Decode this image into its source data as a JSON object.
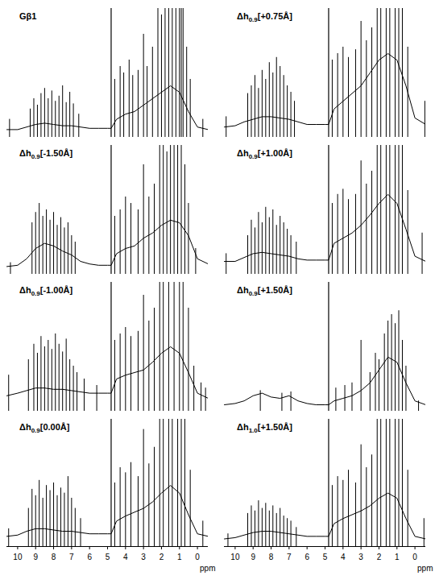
{
  "chart_data": [
    {
      "type": "line",
      "title": "Gβ1",
      "color": "#000000",
      "xlim": [
        10.6,
        -0.6
      ],
      "ylim": [
        0,
        100
      ],
      "axis_break": 4.8,
      "tick_labels": false,
      "envelope": {
        "x": [
          10.6,
          10,
          9.5,
          9,
          8.5,
          8,
          7.5,
          7,
          6.5,
          6,
          5.5,
          5,
          4.8,
          4.5,
          4,
          3.5,
          3,
          2.5,
          2,
          1.5,
          1,
          0.5,
          0,
          -0.6
        ],
        "values": [
          6,
          6,
          8,
          10,
          11,
          10,
          9,
          9,
          8,
          7,
          7,
          7,
          7,
          14,
          18,
          20,
          25,
          30,
          35,
          40,
          35,
          20,
          8,
          6
        ]
      },
      "peaks": {
        "x": [
          10.45,
          9.3,
          9.1,
          8.9,
          8.7,
          8.5,
          8.3,
          8.1,
          7.9,
          7.7,
          7.5,
          7.3,
          7.1,
          6.9,
          6.6,
          4.6,
          4.3,
          4.1,
          3.8,
          3.6,
          3.3,
          3.0,
          2.8,
          2.5,
          2.2,
          2.0,
          1.8,
          1.6,
          1.4,
          1.2,
          1.0,
          0.9,
          0.8,
          0.6,
          0.4,
          -0.3
        ],
        "values": [
          14,
          22,
          30,
          25,
          34,
          38,
          30,
          36,
          28,
          32,
          40,
          27,
          35,
          26,
          18,
          45,
          55,
          50,
          60,
          48,
          52,
          80,
          55,
          70,
          110,
          95,
          120,
          100,
          130,
          115,
          140,
          125,
          110,
          70,
          45,
          14
        ]
      }
    },
    {
      "type": "line",
      "title": "Δh0.9[+0.75Å]",
      "color": "#000000",
      "xlim": [
        10.6,
        -0.6
      ],
      "ylim": [
        0,
        100
      ],
      "axis_break": 4.8,
      "tick_labels": false,
      "envelope": {
        "x": [
          10.6,
          10,
          9.5,
          9,
          8.5,
          8,
          7.5,
          7,
          6.5,
          6,
          5.5,
          5,
          4.8,
          4.5,
          4,
          3.5,
          3,
          2.5,
          2,
          1.5,
          1,
          0.5,
          0,
          -0.6
        ],
        "values": [
          8,
          9,
          12,
          14,
          16,
          16,
          15,
          14,
          12,
          10,
          10,
          10,
          10,
          22,
          28,
          34,
          40,
          50,
          60,
          65,
          60,
          40,
          15,
          10
        ]
      },
      "peaks": {
        "x": [
          10.5,
          9.3,
          9.1,
          8.9,
          8.7,
          8.5,
          8.3,
          8.1,
          7.9,
          7.7,
          7.5,
          7.3,
          7.1,
          6.9,
          6.7,
          4.6,
          4.3,
          4.0,
          3.7,
          3.3,
          3.0,
          2.7,
          2.4,
          2.1,
          1.9,
          1.6,
          1.4,
          1.1,
          0.9,
          0.7,
          0.4,
          -0.55
        ],
        "values": [
          16,
          34,
          40,
          48,
          38,
          52,
          45,
          58,
          50,
          62,
          55,
          48,
          40,
          35,
          28,
          60,
          65,
          70,
          62,
          68,
          90,
          75,
          85,
          120,
          130,
          125,
          140,
          135,
          140,
          120,
          70,
          28
        ]
      }
    },
    {
      "type": "line",
      "title": "Δh0.9[-1.50Å]",
      "color": "#000000",
      "xlim": [
        10.6,
        -0.6
      ],
      "ylim": [
        0,
        100
      ],
      "axis_break": 4.8,
      "tick_labels": false,
      "envelope": {
        "x": [
          10.6,
          10,
          9.5,
          9,
          8.5,
          8,
          7.5,
          7,
          6.5,
          6,
          5.5,
          5,
          4.8,
          4.5,
          4,
          3.5,
          3,
          2.5,
          2,
          1.5,
          1,
          0.5,
          0,
          -0.6
        ],
        "values": [
          6,
          7,
          12,
          20,
          24,
          22,
          18,
          15,
          10,
          8,
          7,
          7,
          7,
          16,
          20,
          22,
          28,
          32,
          38,
          42,
          40,
          30,
          12,
          8
        ]
      },
      "peaks": {
        "x": [
          10.4,
          9.2,
          9.0,
          8.8,
          8.6,
          8.4,
          8.2,
          8.0,
          7.8,
          7.6,
          7.4,
          7.2,
          7.0,
          6.8,
          4.6,
          4.3,
          4.0,
          3.7,
          3.3,
          3.0,
          2.7,
          2.4,
          2.1,
          1.9,
          1.7,
          1.5,
          1.3,
          1.1,
          0.9,
          0.7,
          0.5,
          0.1
        ],
        "values": [
          9,
          40,
          48,
          55,
          45,
          50,
          42,
          48,
          38,
          44,
          36,
          40,
          30,
          25,
          45,
          50,
          60,
          55,
          50,
          85,
          60,
          70,
          100,
          115,
          95,
          125,
          110,
          130,
          120,
          85,
          55,
          20
        ]
      }
    },
    {
      "type": "line",
      "title": "Δh0.9[+1.00Å]",
      "color": "#000000",
      "xlim": [
        10.6,
        -0.6
      ],
      "ylim": [
        0,
        100
      ],
      "axis_break": 4.8,
      "tick_labels": false,
      "envelope": {
        "x": [
          10.6,
          10,
          9.5,
          9,
          8.5,
          8,
          7.5,
          7,
          6.5,
          6,
          5.5,
          5,
          4.8,
          4.5,
          4,
          3.5,
          3,
          2.5,
          2,
          1.5,
          1,
          0.5,
          0,
          -0.6
        ],
        "values": [
          10,
          10,
          13,
          16,
          17,
          16,
          15,
          14,
          12,
          11,
          11,
          11,
          11,
          24,
          28,
          32,
          38,
          46,
          55,
          62,
          55,
          35,
          14,
          10
        ]
      },
      "peaks": {
        "x": [
          10.5,
          9.3,
          9.1,
          8.9,
          8.7,
          8.5,
          8.3,
          8.1,
          7.9,
          7.7,
          7.5,
          7.3,
          7.1,
          6.9,
          6.6,
          4.6,
          4.3,
          4.0,
          3.7,
          3.3,
          3.0,
          2.7,
          2.4,
          2.1,
          1.9,
          1.6,
          1.4,
          1.1,
          0.9,
          0.7,
          0.4,
          -0.4
        ],
        "values": [
          16,
          30,
          42,
          36,
          48,
          40,
          52,
          44,
          50,
          38,
          45,
          40,
          35,
          30,
          25,
          55,
          62,
          66,
          58,
          62,
          88,
          70,
          80,
          118,
          125,
          120,
          135,
          130,
          140,
          115,
          65,
          32
        ]
      }
    },
    {
      "type": "line",
      "title": "Δh0.9[-1.00Å]",
      "color": "#000000",
      "xlim": [
        10.6,
        -0.6
      ],
      "ylim": [
        0,
        100
      ],
      "axis_break": 4.8,
      "tick_labels": false,
      "envelope": {
        "x": [
          10.6,
          10,
          9.5,
          9,
          8.5,
          8,
          7.5,
          7,
          6.5,
          6,
          5.5,
          5,
          4.8,
          4.5,
          4,
          3.5,
          3,
          2.5,
          2,
          1.5,
          1,
          0.5,
          0,
          -0.6
        ],
        "values": [
          12,
          14,
          16,
          18,
          18,
          17,
          17,
          16,
          15,
          14,
          14,
          14,
          14,
          25,
          28,
          30,
          32,
          38,
          45,
          50,
          45,
          30,
          14,
          10
        ]
      },
      "peaks": {
        "x": [
          10.5,
          9.4,
          9.1,
          8.9,
          8.7,
          8.5,
          8.3,
          8.1,
          7.9,
          7.7,
          7.5,
          7.3,
          7.1,
          6.9,
          6.7,
          6.3,
          5.6,
          4.6,
          4.3,
          4.0,
          3.7,
          3.3,
          3.0,
          2.7,
          2.4,
          2.1,
          1.9,
          1.6,
          1.3,
          1.0,
          0.8,
          0.5,
          0.2,
          -0.2,
          -0.45
        ],
        "values": [
          28,
          40,
          52,
          45,
          58,
          50,
          55,
          48,
          60,
          52,
          46,
          56,
          40,
          35,
          30,
          25,
          20,
          55,
          60,
          65,
          58,
          62,
          90,
          70,
          80,
          110,
          125,
          115,
          130,
          140,
          120,
          80,
          35,
          22,
          18
        ]
      }
    },
    {
      "type": "line",
      "title": "Δh0.9[+1.50Å]",
      "color": "#000000",
      "xlim": [
        10.6,
        -0.6
      ],
      "ylim": [
        0,
        100
      ],
      "axis_break": 4.8,
      "tick_labels": false,
      "envelope": {
        "x": [
          10.6,
          10,
          9.5,
          9,
          8.5,
          8,
          7.5,
          7,
          6.5,
          6,
          5.5,
          5,
          4.8,
          4.5,
          4,
          3.5,
          3,
          2.5,
          2,
          1.5,
          1,
          0.5,
          0,
          -0.6
        ],
        "values": [
          5,
          6,
          8,
          12,
          14,
          11,
          10,
          12,
          8,
          6,
          5,
          5,
          5,
          8,
          10,
          12,
          16,
          22,
          32,
          42,
          38,
          22,
          8,
          5
        ]
      },
      "peaks": {
        "x": [
          8.6,
          7.4,
          6.9,
          4.4,
          3.9,
          3.5,
          3.0,
          2.5,
          2.2,
          2.0,
          1.7,
          1.5,
          1.3,
          1.1,
          0.9,
          0.7,
          0.5,
          -0.2
        ],
        "values": [
          16,
          14,
          15,
          18,
          20,
          22,
          55,
          30,
          45,
          40,
          60,
          70,
          75,
          68,
          78,
          55,
          35,
          8
        ]
      }
    },
    {
      "type": "line",
      "title": "Δh0.9[0.00Å]",
      "color": "#000000",
      "xlim": [
        10.6,
        -0.6
      ],
      "ylim": [
        0,
        100
      ],
      "axis_break": 4.8,
      "tick_labels": "x",
      "xticks": [
        10,
        9,
        8,
        7,
        6,
        5,
        4,
        3,
        2,
        1,
        0
      ],
      "xlabel": "ppm",
      "envelope": {
        "x": [
          10.6,
          10,
          9.5,
          9,
          8.5,
          8,
          7.5,
          7,
          6.5,
          6,
          5.5,
          5,
          4.8,
          4.5,
          4,
          3.5,
          3,
          2.5,
          2,
          1.5,
          1,
          0.5,
          0,
          -0.6
        ],
        "values": [
          8,
          9,
          12,
          14,
          14,
          13,
          12,
          12,
          11,
          10,
          10,
          10,
          10,
          20,
          24,
          27,
          30,
          35,
          42,
          48,
          42,
          25,
          10,
          8
        ]
      },
      "peaks": {
        "x": [
          10.5,
          9.4,
          9.2,
          9.0,
          8.8,
          8.6,
          8.4,
          8.2,
          8.0,
          7.8,
          7.6,
          7.4,
          7.2,
          7.0,
          6.8,
          6.5,
          4.6,
          4.3,
          4.0,
          3.7,
          3.3,
          3.0,
          2.7,
          2.4,
          2.1,
          1.9,
          1.6,
          1.4,
          1.1,
          0.9,
          0.7,
          0.4,
          -0.3
        ],
        "values": [
          14,
          30,
          45,
          40,
          52,
          38,
          48,
          44,
          50,
          40,
          46,
          42,
          55,
          38,
          30,
          22,
          50,
          62,
          58,
          66,
          55,
          92,
          65,
          78,
          115,
          120,
          110,
          130,
          125,
          140,
          110,
          60,
          20
        ]
      }
    },
    {
      "type": "line",
      "title": "Δh1.0[+1.50Å]",
      "color": "#000000",
      "xlim": [
        10.6,
        -0.6
      ],
      "ylim": [
        0,
        100
      ],
      "axis_break": 4.8,
      "tick_labels": "x",
      "xticks": [
        10,
        9,
        8,
        7,
        6,
        5,
        4,
        3,
        2,
        1,
        0
      ],
      "xlabel": "ppm",
      "envelope": {
        "x": [
          10.6,
          10,
          9.5,
          9,
          8.5,
          8,
          7.5,
          7,
          6.5,
          6,
          5.5,
          5,
          4.8,
          4.5,
          4,
          3.5,
          3,
          2.5,
          2,
          1.5,
          1,
          0.5,
          0,
          -0.6
        ],
        "values": [
          6,
          7,
          9,
          11,
          12,
          12,
          11,
          10,
          9,
          8,
          8,
          8,
          8,
          18,
          22,
          25,
          28,
          32,
          38,
          42,
          38,
          22,
          8,
          6
        ]
      },
      "peaks": {
        "x": [
          10.4,
          9.3,
          9.1,
          8.9,
          8.7,
          8.5,
          8.3,
          8.1,
          7.9,
          7.7,
          7.5,
          7.3,
          7.1,
          6.9,
          6.6,
          4.6,
          4.3,
          4.0,
          3.7,
          3.3,
          3.0,
          2.7,
          2.4,
          2.1,
          1.9,
          1.6,
          1.4,
          1.1,
          0.9,
          0.7,
          0.4,
          -0.5
        ],
        "values": [
          10,
          26,
          32,
          28,
          36,
          30,
          34,
          28,
          32,
          26,
          30,
          24,
          22,
          20,
          15,
          48,
          55,
          52,
          60,
          50,
          80,
          62,
          72,
          110,
          120,
          115,
          130,
          125,
          135,
          110,
          60,
          22
        ]
      }
    }
  ]
}
